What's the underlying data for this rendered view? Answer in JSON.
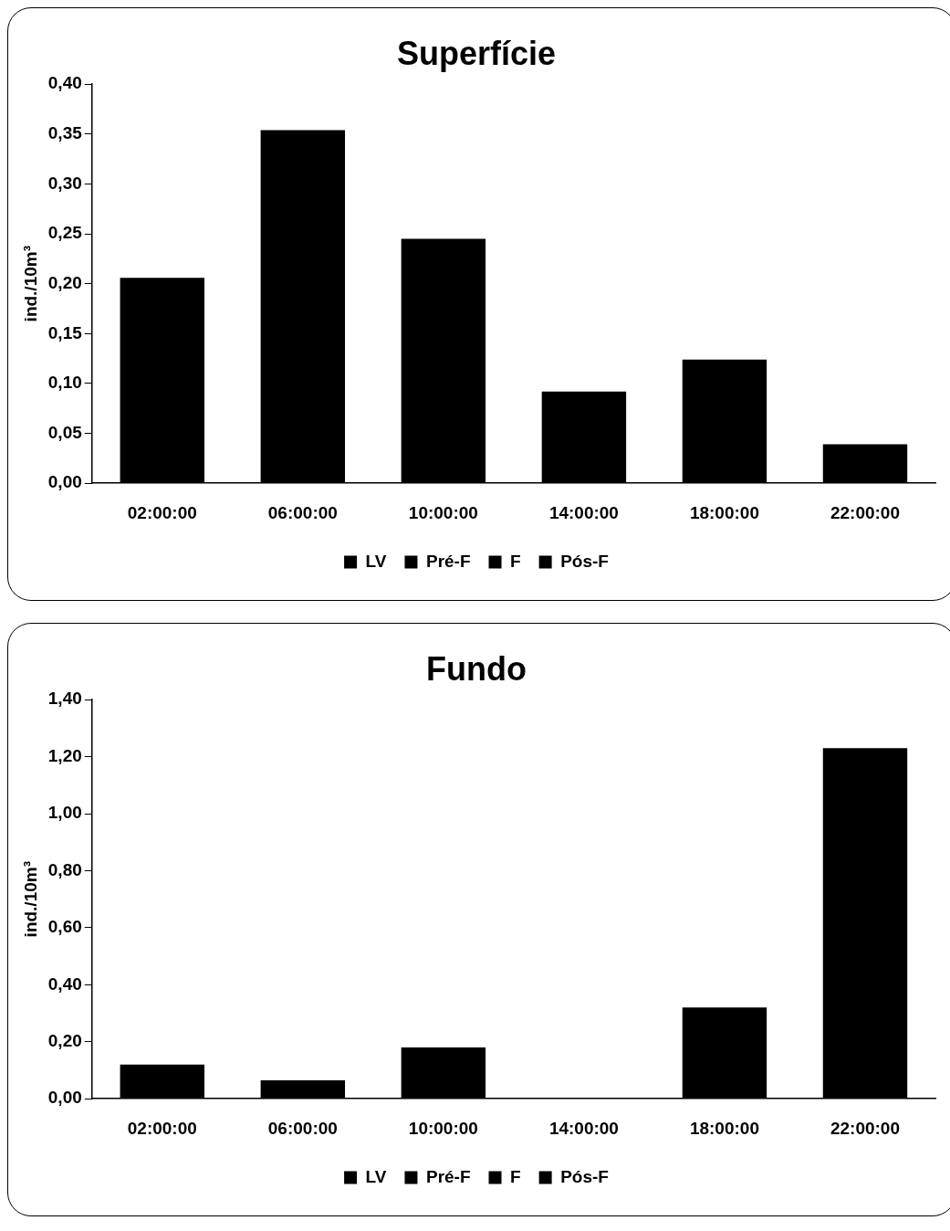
{
  "chart_data": [
    {
      "type": "bar",
      "title": "Superfície",
      "ylabel": "ind./10m³",
      "categories": [
        "02:00:00",
        "06:00:00",
        "10:00:00",
        "14:00:00",
        "18:00:00",
        "22:00:00"
      ],
      "stacked": true,
      "series": [
        {
          "name": "LV",
          "color": "#000000",
          "values": [
            0.206,
            0.354,
            0.245,
            0.092,
            0.124,
            0.039
          ]
        },
        {
          "name": "Pré-F",
          "color": "#000000",
          "values": [
            null,
            null,
            null,
            null,
            null,
            null
          ]
        },
        {
          "name": "F",
          "color": "#000000",
          "values": [
            null,
            null,
            null,
            null,
            null,
            null
          ]
        },
        {
          "name": "Pós-F",
          "color": "#000000",
          "values": [
            null,
            null,
            null,
            null,
            null,
            null
          ]
        }
      ],
      "ylim": [
        0,
        0.4
      ],
      "yticks": [
        {
          "value": 0,
          "label": "0,00"
        },
        {
          "value": 0.05,
          "label": "0,05"
        },
        {
          "value": 0.1,
          "label": "0,10"
        },
        {
          "value": 0.15,
          "label": "0,15"
        },
        {
          "value": 0.2,
          "label": "0,20"
        },
        {
          "value": 0.25,
          "label": "0,25"
        },
        {
          "value": 0.3,
          "label": "0,30"
        },
        {
          "value": 0.35,
          "label": "0,35"
        },
        {
          "value": 0.4,
          "label": "0,40"
        }
      ],
      "grid": false,
      "legend": "bottom"
    },
    {
      "type": "bar",
      "title": "Fundo",
      "ylabel": "ind./10m³",
      "categories": [
        "02:00:00",
        "06:00:00",
        "10:00:00",
        "14:00:00",
        "18:00:00",
        "22:00:00"
      ],
      "stacked": true,
      "series": [
        {
          "name": "LV",
          "color": "#000000",
          "values": [
            0.12,
            0.065,
            0.18,
            0,
            0.32,
            1.23
          ]
        },
        {
          "name": "Pré-F",
          "color": "#000000",
          "values": [
            null,
            null,
            null,
            null,
            null,
            null
          ]
        },
        {
          "name": "F",
          "color": "#000000",
          "values": [
            null,
            null,
            null,
            null,
            null,
            null
          ]
        },
        {
          "name": "Pós-F",
          "color": "#000000",
          "values": [
            null,
            null,
            null,
            null,
            null,
            null
          ]
        }
      ],
      "ylim": [
        0,
        1.4
      ],
      "yticks": [
        {
          "value": 0,
          "label": "0,00"
        },
        {
          "value": 0.2,
          "label": "0,20"
        },
        {
          "value": 0.4,
          "label": "0,40"
        },
        {
          "value": 0.6,
          "label": "0,60"
        },
        {
          "value": 0.8,
          "label": "0,80"
        },
        {
          "value": 1,
          "label": "1,00"
        },
        {
          "value": 1.2,
          "label": "1,20"
        },
        {
          "value": 1.4,
          "label": "1,40"
        }
      ],
      "grid": false,
      "legend": "bottom"
    }
  ]
}
